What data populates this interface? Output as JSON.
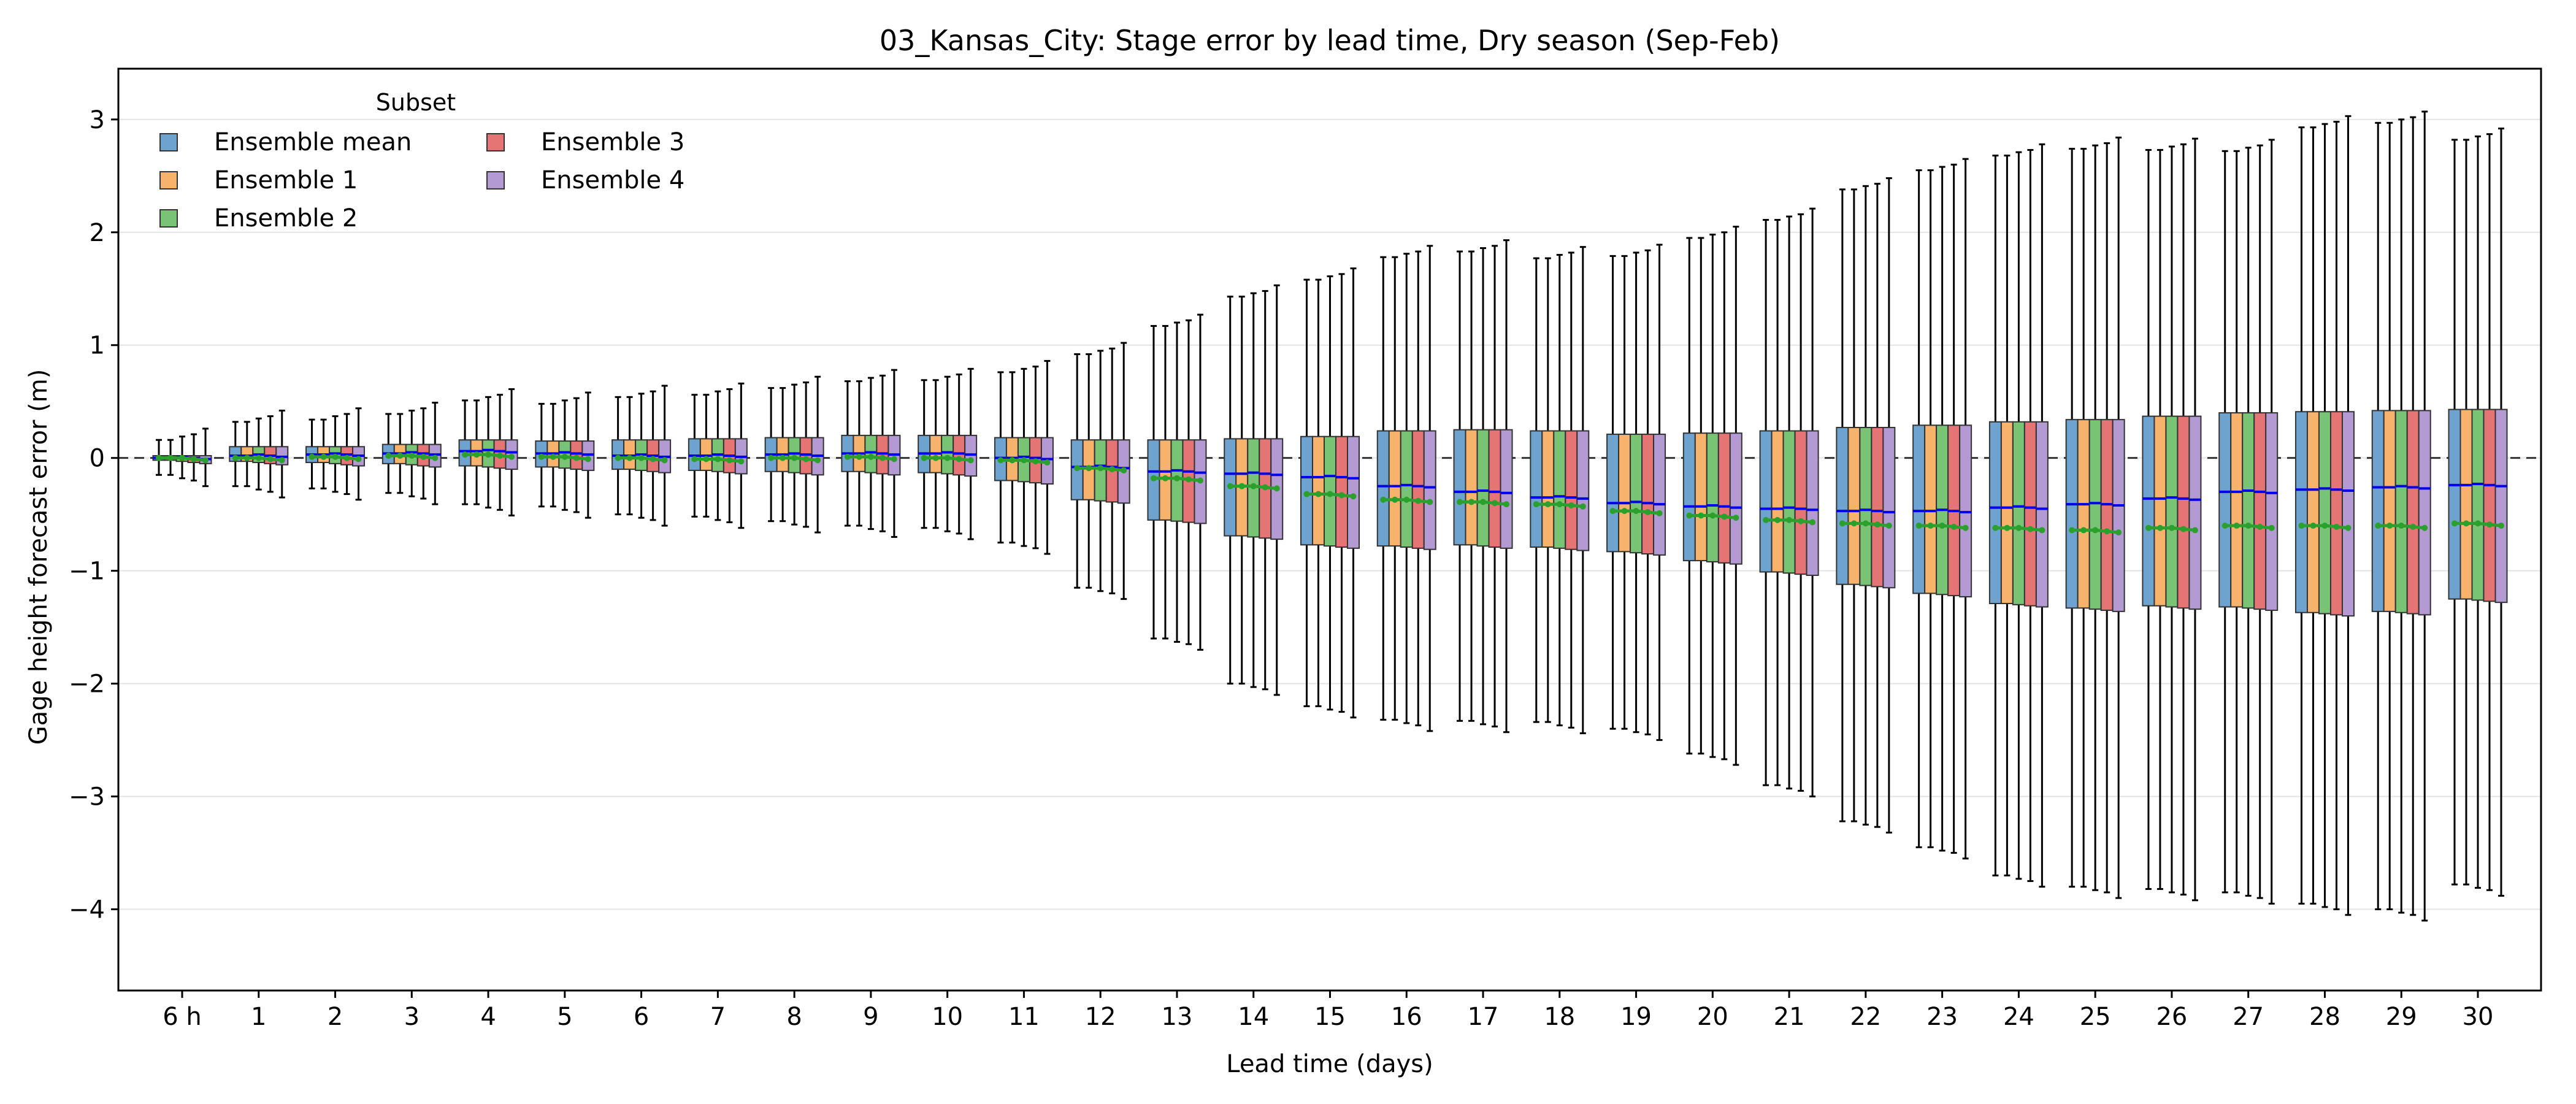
{
  "chart_data": {
    "type": "box",
    "title": "03_Kansas_City: Stage error by lead time, Dry season (Sep-Feb)",
    "xlabel": "Lead time (days)",
    "ylabel": "Gage height forecast error (m)",
    "ylim": [
      -4.72,
      3.45
    ],
    "yticks": [
      3,
      2,
      1,
      0,
      -1,
      -2,
      -3,
      -4
    ],
    "ytick_labels": [
      "3",
      "2",
      "1",
      "0",
      "−1",
      "−2",
      "−3",
      "−4"
    ],
    "grid": "horizontal",
    "reference_line": 0,
    "legend": {
      "title": "Subset",
      "position": "top-left",
      "columns": 2
    },
    "categories": [
      "6 h",
      "1",
      "2",
      "3",
      "4",
      "5",
      "6",
      "7",
      "8",
      "9",
      "10",
      "11",
      "12",
      "13",
      "14",
      "15",
      "16",
      "17",
      "18",
      "19",
      "20",
      "21",
      "22",
      "23",
      "24",
      "25",
      "26",
      "27",
      "28",
      "29",
      "30"
    ],
    "series": [
      {
        "name": "Ensemble mean",
        "color": "#6fa3cf"
      },
      {
        "name": "Ensemble 1",
        "color": "#f7b26b"
      },
      {
        "name": "Ensemble 2",
        "color": "#79c374"
      },
      {
        "name": "Ensemble 3",
        "color": "#e57474"
      },
      {
        "name": "Ensemble 4",
        "color": "#b39ad3"
      }
    ],
    "stats": {
      "q1": [
        -0.02,
        -0.03,
        -0.04,
        -0.05,
        -0.07,
        -0.08,
        -0.1,
        -0.11,
        -0.12,
        -0.12,
        -0.13,
        -0.2,
        -0.37,
        -0.55,
        -0.69,
        -0.77,
        -0.78,
        -0.77,
        -0.79,
        -0.83,
        -0.91,
        -1.01,
        -1.12,
        -1.2,
        -1.29,
        -1.33,
        -1.31,
        -1.32,
        -1.37,
        -1.36,
        -1.25
      ],
      "q3": [
        0.02,
        0.1,
        0.1,
        0.12,
        0.16,
        0.15,
        0.16,
        0.17,
        0.18,
        0.2,
        0.2,
        0.18,
        0.16,
        0.16,
        0.17,
        0.19,
        0.24,
        0.25,
        0.24,
        0.21,
        0.22,
        0.24,
        0.27,
        0.29,
        0.32,
        0.34,
        0.37,
        0.4,
        0.41,
        0.42,
        0.43
      ],
      "median": [
        0.0,
        0.02,
        0.03,
        0.04,
        0.06,
        0.04,
        0.02,
        0.02,
        0.03,
        0.04,
        0.04,
        0.0,
        -0.08,
        -0.12,
        -0.14,
        -0.17,
        -0.25,
        -0.3,
        -0.35,
        -0.4,
        -0.43,
        -0.45,
        -0.47,
        -0.47,
        -0.44,
        -0.41,
        -0.36,
        -0.3,
        -0.28,
        -0.26,
        -0.24
      ],
      "mean": [
        0.0,
        0.0,
        0.01,
        0.02,
        0.03,
        0.01,
        0.0,
        -0.01,
        0.0,
        0.01,
        0.0,
        -0.02,
        -0.09,
        -0.18,
        -0.25,
        -0.32,
        -0.37,
        -0.39,
        -0.41,
        -0.47,
        -0.51,
        -0.55,
        -0.58,
        -0.6,
        -0.62,
        -0.64,
        -0.62,
        -0.6,
        -0.6,
        -0.6,
        -0.58
      ],
      "whislo": [
        -0.15,
        -0.25,
        -0.27,
        -0.31,
        -0.41,
        -0.43,
        -0.5,
        -0.52,
        -0.56,
        -0.6,
        -0.62,
        -0.75,
        -1.15,
        -1.6,
        -2.0,
        -2.2,
        -2.32,
        -2.33,
        -2.34,
        -2.4,
        -2.62,
        -2.9,
        -3.22,
        -3.45,
        -3.7,
        -3.8,
        -3.82,
        -3.85,
        -3.95,
        -4.0,
        -3.78
      ],
      "whishi": [
        0.16,
        0.32,
        0.34,
        0.39,
        0.51,
        0.48,
        0.54,
        0.56,
        0.62,
        0.68,
        0.69,
        0.76,
        0.92,
        1.17,
        1.43,
        1.58,
        1.78,
        1.83,
        1.77,
        1.79,
        1.95,
        2.11,
        2.38,
        2.55,
        2.68,
        2.74,
        2.73,
        2.72,
        2.93,
        2.97,
        2.82
      ]
    },
    "member_jitter": {
      "q1": [
        0.0,
        0.0,
        -0.01,
        -0.02,
        -0.03
      ],
      "q3": [
        0.0,
        0.0,
        0.0,
        0.0,
        0.0
      ],
      "median": [
        0.0,
        0.0,
        0.01,
        0.0,
        -0.01
      ],
      "mean": [
        0.0,
        0.0,
        0.0,
        -0.01,
        -0.02
      ],
      "whislo": [
        0.0,
        0.0,
        -0.03,
        -0.05,
        -0.1
      ],
      "whishi": [
        0.0,
        0.0,
        0.03,
        0.05,
        0.1
      ]
    },
    "median_color": "#0000ee",
    "mean_color": "#2ca02c"
  }
}
